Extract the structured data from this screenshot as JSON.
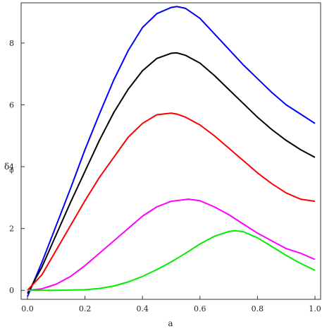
{
  "chart_data": {
    "type": "line",
    "xlabel": "a",
    "ylabel_main": "δ",
    "ylabel_sub": "ϕ",
    "xlim": [
      0,
      1
    ],
    "ylim": [
      -0.2,
      9.3
    ],
    "grid": false,
    "x_ticks": [
      0.0,
      0.2,
      0.4,
      0.6,
      0.8,
      1.0
    ],
    "x_tick_labels": [
      "0.0",
      "0.2",
      "0.4",
      "0.6",
      "0.8",
      "1.0"
    ],
    "y_ticks": [
      0,
      2,
      4,
      6,
      8
    ],
    "y_tick_labels": [
      "0",
      "2",
      "4",
      "6",
      "8"
    ],
    "series": [
      {
        "color": "#0000ff",
        "x": [
          0.0,
          0.05,
          0.1,
          0.15,
          0.2,
          0.25,
          0.3,
          0.35,
          0.4,
          0.45,
          0.5,
          0.52,
          0.55,
          0.6,
          0.65,
          0.7,
          0.75,
          0.8,
          0.85,
          0.9,
          0.95,
          1.0
        ],
        "y": [
          -0.2,
          0.9,
          2.1,
          3.3,
          4.55,
          5.7,
          6.8,
          7.75,
          8.5,
          8.95,
          9.15,
          9.18,
          9.12,
          8.8,
          8.3,
          7.8,
          7.3,
          6.85,
          6.4,
          6.0,
          5.7,
          5.4
        ]
      },
      {
        "color": "#000000",
        "x": [
          0.0,
          0.05,
          0.1,
          0.15,
          0.2,
          0.25,
          0.3,
          0.35,
          0.4,
          0.45,
          0.5,
          0.52,
          0.55,
          0.6,
          0.65,
          0.7,
          0.75,
          0.8,
          0.85,
          0.9,
          0.95,
          1.0
        ],
        "y": [
          -0.1,
          0.75,
          1.8,
          2.85,
          3.85,
          4.85,
          5.75,
          6.5,
          7.1,
          7.5,
          7.67,
          7.68,
          7.6,
          7.35,
          6.95,
          6.5,
          6.05,
          5.6,
          5.2,
          4.85,
          4.55,
          4.3
        ]
      },
      {
        "color": "#ff0000",
        "x": [
          0.0,
          0.05,
          0.1,
          0.15,
          0.2,
          0.25,
          0.3,
          0.35,
          0.4,
          0.45,
          0.5,
          0.52,
          0.55,
          0.6,
          0.65,
          0.7,
          0.75,
          0.8,
          0.85,
          0.9,
          0.95,
          1.0
        ],
        "y": [
          0.0,
          0.5,
          1.3,
          2.1,
          2.9,
          3.65,
          4.3,
          4.95,
          5.4,
          5.68,
          5.73,
          5.7,
          5.6,
          5.35,
          5.0,
          4.6,
          4.2,
          3.8,
          3.45,
          3.15,
          2.95,
          2.88
        ]
      },
      {
        "color": "#ff00ff",
        "x": [
          0.0,
          0.05,
          0.1,
          0.15,
          0.2,
          0.25,
          0.3,
          0.35,
          0.4,
          0.45,
          0.5,
          0.56,
          0.6,
          0.65,
          0.7,
          0.75,
          0.8,
          0.85,
          0.9,
          0.95,
          1.0
        ],
        "y": [
          0.0,
          0.05,
          0.2,
          0.45,
          0.8,
          1.2,
          1.6,
          2.0,
          2.4,
          2.7,
          2.88,
          2.95,
          2.9,
          2.7,
          2.45,
          2.15,
          1.85,
          1.6,
          1.35,
          1.2,
          1.0
        ]
      },
      {
        "color": "#00ee00",
        "x": [
          0.0,
          0.1,
          0.2,
          0.25,
          0.3,
          0.35,
          0.4,
          0.45,
          0.5,
          0.55,
          0.6,
          0.65,
          0.7,
          0.72,
          0.75,
          0.8,
          0.85,
          0.9,
          0.95,
          1.0
        ],
        "y": [
          0.0,
          0.0,
          0.02,
          0.06,
          0.14,
          0.27,
          0.45,
          0.67,
          0.92,
          1.2,
          1.5,
          1.75,
          1.9,
          1.93,
          1.9,
          1.7,
          1.42,
          1.13,
          0.87,
          0.65
        ]
      }
    ]
  }
}
